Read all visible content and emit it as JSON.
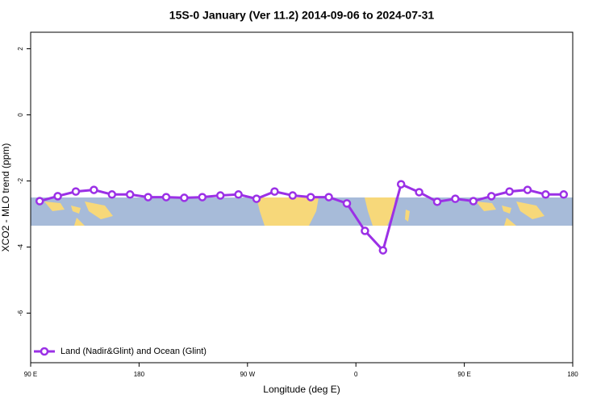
{
  "chart_data": {
    "type": "line",
    "title": "15S-0 January (Ver 11.2)   2014-09-06 to 2024-07-31",
    "x_label": "Longitude (deg E)",
    "y_label": "XCO2 - MLO trend (ppm)",
    "xlim": [
      90,
      540
    ],
    "ylim": [
      -7.5,
      2.5
    ],
    "xticks": [
      {
        "value": 90,
        "label": "90 E"
      },
      180,
      {
        "value": 270,
        "label": "90 W"
      },
      {
        "value": 360,
        "label": "0"
      },
      {
        "value": 450,
        "label": "90 E"
      },
      {
        "value": 540,
        "label": "180"
      }
    ],
    "yticks": [
      2,
      0,
      -2,
      -4,
      -6
    ],
    "legend": "bottom-left",
    "series": [
      {
        "name": "Land (Nadir&Glint) and Ocean (Glint)",
        "color": "#9b30e6",
        "x": [
          97.5,
          112.5,
          127.5,
          142.5,
          157.5,
          172.5,
          187.5,
          202.5,
          217.5,
          232.5,
          247.5,
          262.5,
          277.5,
          292.5,
          307.5,
          322.5,
          337.5,
          352.5,
          367.5,
          382.5,
          397.5,
          412.5,
          427.5,
          442.5,
          457.5,
          472.5,
          487.5,
          502.5,
          517.5,
          532.5
        ],
        "values": [
          -2.61,
          -2.46,
          -2.32,
          -2.27,
          -2.41,
          -2.41,
          -2.49,
          -2.49,
          -2.51,
          -2.49,
          -2.44,
          -2.41,
          -2.54,
          -2.32,
          -2.44,
          -2.49,
          -2.49,
          -2.68,
          -3.51,
          -4.1,
          -2.1,
          -2.34,
          -2.63,
          -2.54,
          -2.61,
          -2.46,
          -2.32,
          -2.27,
          -2.41,
          -2.41
        ]
      }
    ]
  }
}
